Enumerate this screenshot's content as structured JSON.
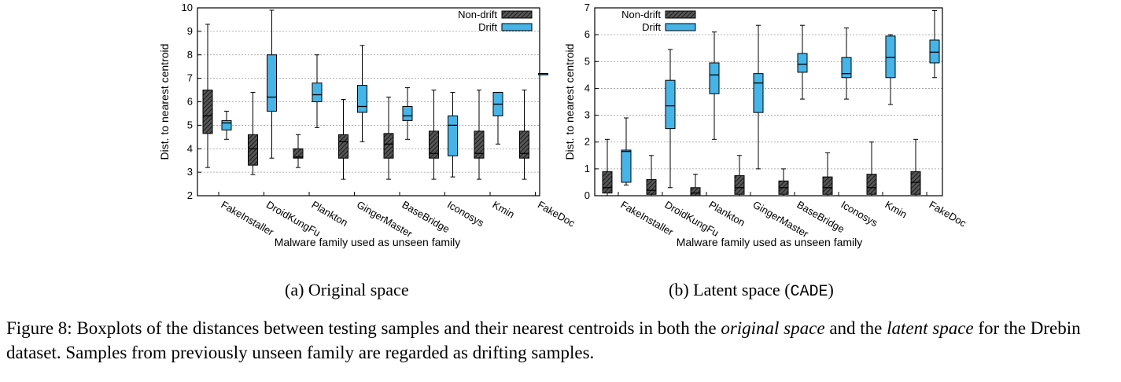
{
  "chart_data": [
    {
      "type": "box",
      "ylabel": "Dist. to nearest centroid",
      "xlabel": "Malware family used as unseen family",
      "ylim": [
        2,
        10
      ],
      "yticks": [
        2,
        3,
        4,
        5,
        6,
        7,
        8,
        9,
        10
      ],
      "grid": "horizontal dashed",
      "legend": {
        "position": "top-right",
        "entries": [
          "Non-drift",
          "Drift"
        ]
      },
      "categories": [
        "FakeInstaller",
        "DroidKungFu",
        "Plankton",
        "GingerMaster",
        "BaseBridge",
        "Iconosys",
        "Kmin",
        "FakeDoc"
      ],
      "series": [
        {
          "name": "Non-drift",
          "color": "#303030",
          "pattern": "hatched",
          "boxes": [
            {
              "min": 3.2,
              "q1": 4.65,
              "median": 5.4,
              "q3": 6.5,
              "max": 9.3
            },
            {
              "min": 2.9,
              "q1": 3.3,
              "median": 4.0,
              "q3": 4.6,
              "max": 6.4
            },
            {
              "min": 3.2,
              "q1": 3.6,
              "median": 3.65,
              "q3": 4.0,
              "max": 4.6
            },
            {
              "min": 2.7,
              "q1": 3.6,
              "median": 4.3,
              "q3": 4.6,
              "max": 6.1
            },
            {
              "min": 2.7,
              "q1": 3.6,
              "median": 4.2,
              "q3": 4.65,
              "max": 6.2
            },
            {
              "min": 2.7,
              "q1": 3.6,
              "median": 3.8,
              "q3": 4.75,
              "max": 6.5
            },
            {
              "min": 2.7,
              "q1": 3.6,
              "median": 3.8,
              "q3": 4.75,
              "max": 6.5
            },
            {
              "min": 2.7,
              "q1": 3.6,
              "median": 3.8,
              "q3": 4.75,
              "max": 6.5
            }
          ]
        },
        {
          "name": "Drift",
          "color": "#46b4e6",
          "boxes": [
            {
              "min": 4.4,
              "q1": 4.8,
              "median": 5.1,
              "q3": 5.2,
              "max": 5.6
            },
            {
              "min": 3.6,
              "q1": 5.6,
              "median": 6.2,
              "q3": 8.0,
              "max": 9.9
            },
            {
              "min": 4.9,
              "q1": 6.0,
              "median": 6.3,
              "q3": 6.8,
              "max": 8.0
            },
            {
              "min": 4.3,
              "q1": 5.55,
              "median": 5.8,
              "q3": 6.7,
              "max": 8.4
            },
            {
              "min": 4.4,
              "q1": 5.2,
              "median": 5.4,
              "q3": 5.8,
              "max": 6.6
            },
            {
              "min": 2.8,
              "q1": 3.7,
              "median": 5.0,
              "q3": 5.4,
              "max": 6.4
            },
            {
              "min": 4.2,
              "q1": 5.4,
              "median": 5.9,
              "q3": 6.4,
              "max": 6.4
            },
            {
              "min": 7.2,
              "q1": 7.2,
              "median": 7.2,
              "q3": 7.2,
              "max": 7.2
            }
          ]
        }
      ]
    },
    {
      "type": "box",
      "ylabel": "Dist. to nearest centroid",
      "xlabel": "Malware family used as unseen family",
      "ylim": [
        0,
        7
      ],
      "yticks": [
        0,
        1,
        2,
        3,
        4,
        5,
        6,
        7
      ],
      "grid": "horizontal dashed",
      "legend": {
        "position": "top-left",
        "entries": [
          "Non-drift",
          "Drift"
        ]
      },
      "categories": [
        "FakeInstaller",
        "DroidKungFu",
        "Plankton",
        "GingerMaster",
        "BaseBridge",
        "Iconosys",
        "Kmin",
        "FakeDoc"
      ],
      "series": [
        {
          "name": "Non-drift",
          "color": "#303030",
          "pattern": "hatched",
          "boxes": [
            {
              "min": 0.0,
              "q1": 0.1,
              "median": 0.3,
              "q3": 0.9,
              "max": 2.1
            },
            {
              "min": 0.0,
              "q1": 0.05,
              "median": 0.2,
              "q3": 0.6,
              "max": 1.5
            },
            {
              "min": 0.0,
              "q1": 0.0,
              "median": 0.1,
              "q3": 0.3,
              "max": 0.8
            },
            {
              "min": 0.0,
              "q1": 0.05,
              "median": 0.3,
              "q3": 0.75,
              "max": 1.5
            },
            {
              "min": 0.0,
              "q1": 0.05,
              "median": 0.3,
              "q3": 0.55,
              "max": 1.0
            },
            {
              "min": 0.0,
              "q1": 0.05,
              "median": 0.3,
              "q3": 0.7,
              "max": 1.6
            },
            {
              "min": 0.0,
              "q1": 0.05,
              "median": 0.3,
              "q3": 0.8,
              "max": 2.0
            },
            {
              "min": 0.0,
              "q1": 0.05,
              "median": 0.5,
              "q3": 0.9,
              "max": 2.1
            }
          ]
        },
        {
          "name": "Drift",
          "color": "#46b4e6",
          "boxes": [
            {
              "min": 0.4,
              "q1": 0.5,
              "median": 1.65,
              "q3": 1.7,
              "max": 2.9
            },
            {
              "min": 0.3,
              "q1": 2.5,
              "median": 3.35,
              "q3": 4.3,
              "max": 5.45
            },
            {
              "min": 2.1,
              "q1": 3.8,
              "median": 4.5,
              "q3": 4.95,
              "max": 6.1
            },
            {
              "min": 1.0,
              "q1": 3.1,
              "median": 4.2,
              "q3": 4.55,
              "max": 6.35
            },
            {
              "min": 3.6,
              "q1": 4.6,
              "median": 4.9,
              "q3": 5.3,
              "max": 6.35
            },
            {
              "min": 3.6,
              "q1": 4.4,
              "median": 4.55,
              "q3": 5.15,
              "max": 6.25
            },
            {
              "min": 3.4,
              "q1": 4.4,
              "median": 5.15,
              "q3": 5.95,
              "max": 6.0
            },
            {
              "min": 4.4,
              "q1": 4.95,
              "median": 5.35,
              "q3": 5.8,
              "max": 6.9
            }
          ]
        }
      ]
    }
  ],
  "subcaptions": {
    "a": "(a) Original space",
    "b_prefix": "(b) Latent space (",
    "b_code": "CADE",
    "b_suffix": ")"
  },
  "caption": {
    "part1": "Figure 8: Boxplots of the distances between testing samples and their nearest centroids in both the ",
    "em1": "original space",
    "part2": " and the ",
    "em2": "latent space",
    "part3": " for the Drebin dataset. Samples from previously unseen family are regarded as drifting samples."
  }
}
